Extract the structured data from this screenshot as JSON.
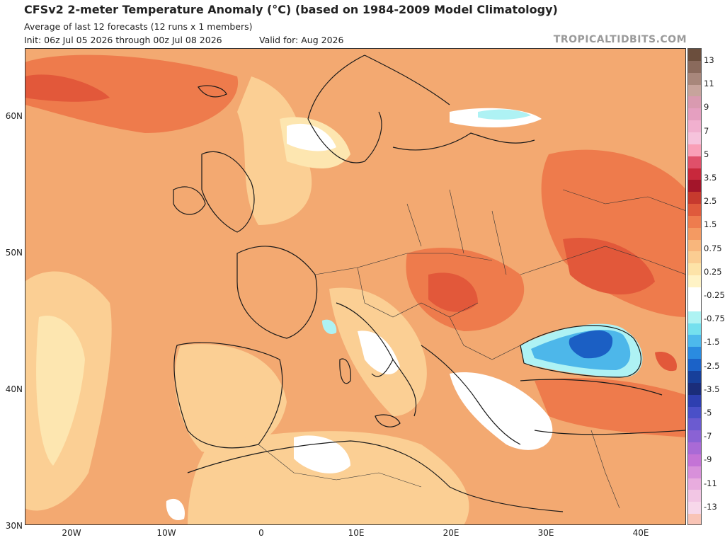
{
  "header": {
    "title": "CFSv2 2-meter Temperature Anomaly (°C) (based on 1984-2009 Model Climatology)",
    "subtitle": "Average of last 12 forecasts (12 runs x 1 members)",
    "init": "Init: 06z Jul 05 2026 through 00z Jul 08 2026",
    "valid": "Valid for: Aug 2026",
    "brand": "TROPICALTIDBITS.COM"
  },
  "axes": {
    "lat_labels": [
      "60N",
      "50N",
      "40N",
      "30N"
    ],
    "lon_labels": [
      "20W",
      "10W",
      "0",
      "10E",
      "20E",
      "30E",
      "40E"
    ]
  },
  "colorbar": {
    "labels": [
      "13",
      "11",
      "9",
      "7",
      "5",
      "3.5",
      "2.5",
      "1.5",
      "0.75",
      "0.25",
      "-0.25",
      "-0.75",
      "-1.5",
      "-2.5",
      "-3.5",
      "-5",
      "-7",
      "-9",
      "-11",
      "-13"
    ],
    "colors": [
      "#6b4e3d",
      "#8a6a5c",
      "#a8877b",
      "#c7a49c",
      "#d99ab0",
      "#e59fc0",
      "#f1b0cf",
      "#f6c3dc",
      "#f99fb7",
      "#e0506a",
      "#c8283c",
      "#a3152a",
      "#c63a2e",
      "#df5a3c",
      "#ee7c4e",
      "#f49a62",
      "#f8b67c",
      "#fbcd92",
      "#fde3a8",
      "#fff3c6",
      "#ffffff",
      "#ffffff",
      "#aef3f3",
      "#74e0ee",
      "#4db9ec",
      "#2a8be0",
      "#1b62c8",
      "#173f9a",
      "#1b2d7a",
      "#2e3fb0",
      "#4a50c8",
      "#6b5bd0",
      "#8a62d4",
      "#a96ad6",
      "#c473d6",
      "#d890da",
      "#e8acde",
      "#f2c6e4",
      "#f7d8ea",
      "#f9c4b6"
    ]
  },
  "map": {
    "colors": {
      "sea_base": "#f3a971",
      "warm_light": "#fbcf94",
      "warm_pale": "#fde6b0",
      "warm_strong": "#ee7b4c",
      "warm_hot": "#e2583a",
      "neutral": "#ffffff",
      "cool_light": "#aef2f4",
      "cool_mid": "#4db7ea",
      "cool_deep": "#1b5fc4",
      "land_line": "#1a1a1a"
    }
  }
}
